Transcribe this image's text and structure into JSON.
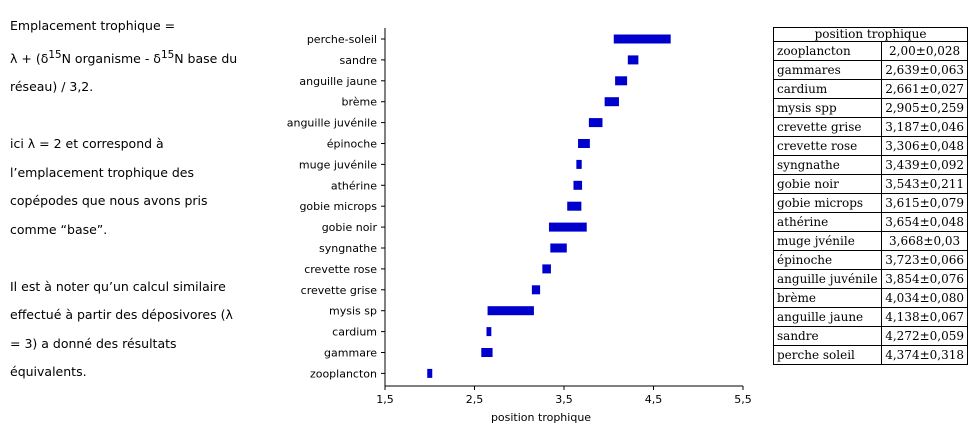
{
  "notes": {
    "formula_title": "Emplacement trophique =",
    "formula_part1": "λ + (δ",
    "formula_sup1": "15",
    "formula_part2": "N organisme - δ",
    "formula_sup2": "15",
    "formula_part3": "N base du",
    "formula_line3": "réseau) / 3,2.",
    "explain_line1": "ici λ = 2 et correspond à",
    "explain_line2": "l’emplacement trophique des",
    "explain_line3": "copépodes que nous avons pris",
    "explain_line4": "comme “base”.",
    "remark_line1": "Il est à noter qu’un calcul similaire",
    "remark_line2": "effectué à partir des déposivores (λ",
    "remark_line3": "= 3) a donné des résultats",
    "remark_line4": "équivalents."
  },
  "chart_data": {
    "type": "bar",
    "orientation": "horizontal-range",
    "xlabel": "position trophique",
    "xlim": [
      1.5,
      5.5
    ],
    "xticks": [
      1.5,
      2.5,
      3.5,
      4.5,
      5.5
    ],
    "xtick_labels": [
      "1,5",
      "2,5",
      "3,5",
      "4,5",
      "5,5"
    ],
    "bar_color": "#0000cc",
    "categories": [
      "perche-soleil",
      "sandre",
      "anguille jaune",
      "brème",
      "anguille juvénile",
      "épinoche",
      "muge juvénile",
      "athérine",
      "gobie microps",
      "gobie noir",
      "syngnathe",
      "crevette rose",
      "crevette grise",
      "mysis sp",
      "cardium",
      "gammare",
      "zooplancton"
    ],
    "values": [
      4.374,
      4.272,
      4.138,
      4.034,
      3.854,
      3.723,
      3.668,
      3.654,
      3.615,
      3.543,
      3.439,
      3.306,
      3.187,
      2.905,
      2.661,
      2.639,
      2.0
    ],
    "errors": [
      0.318,
      0.059,
      0.067,
      0.08,
      0.076,
      0.066,
      0.03,
      0.048,
      0.079,
      0.211,
      0.092,
      0.048,
      0.046,
      0.259,
      0.027,
      0.063,
      0.028
    ]
  },
  "table": {
    "header": "position trophique",
    "rows": [
      [
        "zooplancton",
        "2,00±0,028"
      ],
      [
        "gammares",
        "2,639±0,063"
      ],
      [
        "cardium",
        "2,661±0,027"
      ],
      [
        "mysis spp",
        "2,905±0,259"
      ],
      [
        "crevette grise",
        "3,187±0,046"
      ],
      [
        "crevette rose",
        "3,306±0,048"
      ],
      [
        "syngnathe",
        "3,439±0,092"
      ],
      [
        "gobie noir",
        "3,543±0,211"
      ],
      [
        "gobie microps",
        "3,615±0,079"
      ],
      [
        "athérine",
        "3,654±0,048"
      ],
      [
        "muge jvénile",
        "3,668±0,03"
      ],
      [
        "épinoche",
        "3,723±0,066"
      ],
      [
        "anguille juvénile",
        "3,854±0,076"
      ],
      [
        "brème",
        "4,034±0,080"
      ],
      [
        "anguille jaune",
        "4,138±0,067"
      ],
      [
        "sandre",
        "4,272±0,059"
      ],
      [
        "perche soleil",
        "4,374±0,318"
      ]
    ]
  }
}
